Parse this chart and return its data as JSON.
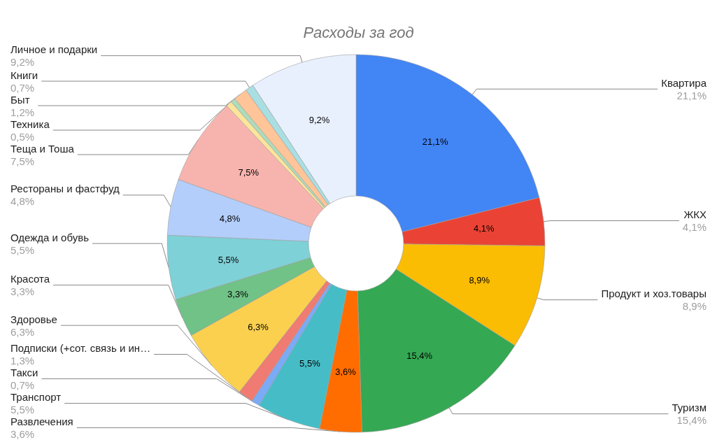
{
  "chart_data": {
    "type": "donut",
    "title": "Расходы за год",
    "legend": false,
    "categories": [
      "Квартира",
      "ЖКХ",
      "Продукт и хоз.товары",
      "Туризм",
      "Развлечения",
      "Транспорт",
      "Такси",
      "Подписки (+сот. связь и ин…",
      "Здоровье",
      "Красота",
      "Одежда и обувь",
      "Рестораны и фастфуд",
      "Теща и Тоша",
      "Техника",
      null,
      "Быт",
      "Книги",
      "Личное и подарки"
    ],
    "values": [
      21.1,
      4.1,
      8.9,
      15.4,
      3.6,
      5.5,
      0.7,
      1.3,
      6.3,
      3.3,
      5.5,
      4.8,
      7.5,
      0.5,
      0.4,
      1.2,
      0.7,
      9.2
    ],
    "value_labels": [
      "21,1%",
      "4,1%",
      "8,9%",
      "15,4%",
      "3,6%",
      "5,5%",
      "0,7%",
      "1,3%",
      "6,3%",
      "3,3%",
      "5,5%",
      "4,8%",
      "7,5%",
      "0,5%",
      null,
      "1,2%",
      "0,7%",
      "9,2%"
    ],
    "colors": [
      "#4285f4",
      "#ea4335",
      "#fbbc04",
      "#34a853",
      "#ff6d01",
      "#46bdc6",
      "#7baaf7",
      "#f07b72",
      "#fcd04f",
      "#71c287",
      "#7ed1d7",
      "#b3cefb",
      "#f7b4ae",
      "#fde49b",
      "#aedcba",
      "#ffc599",
      "#a9dfe2",
      "#e8f0fe"
    ]
  }
}
